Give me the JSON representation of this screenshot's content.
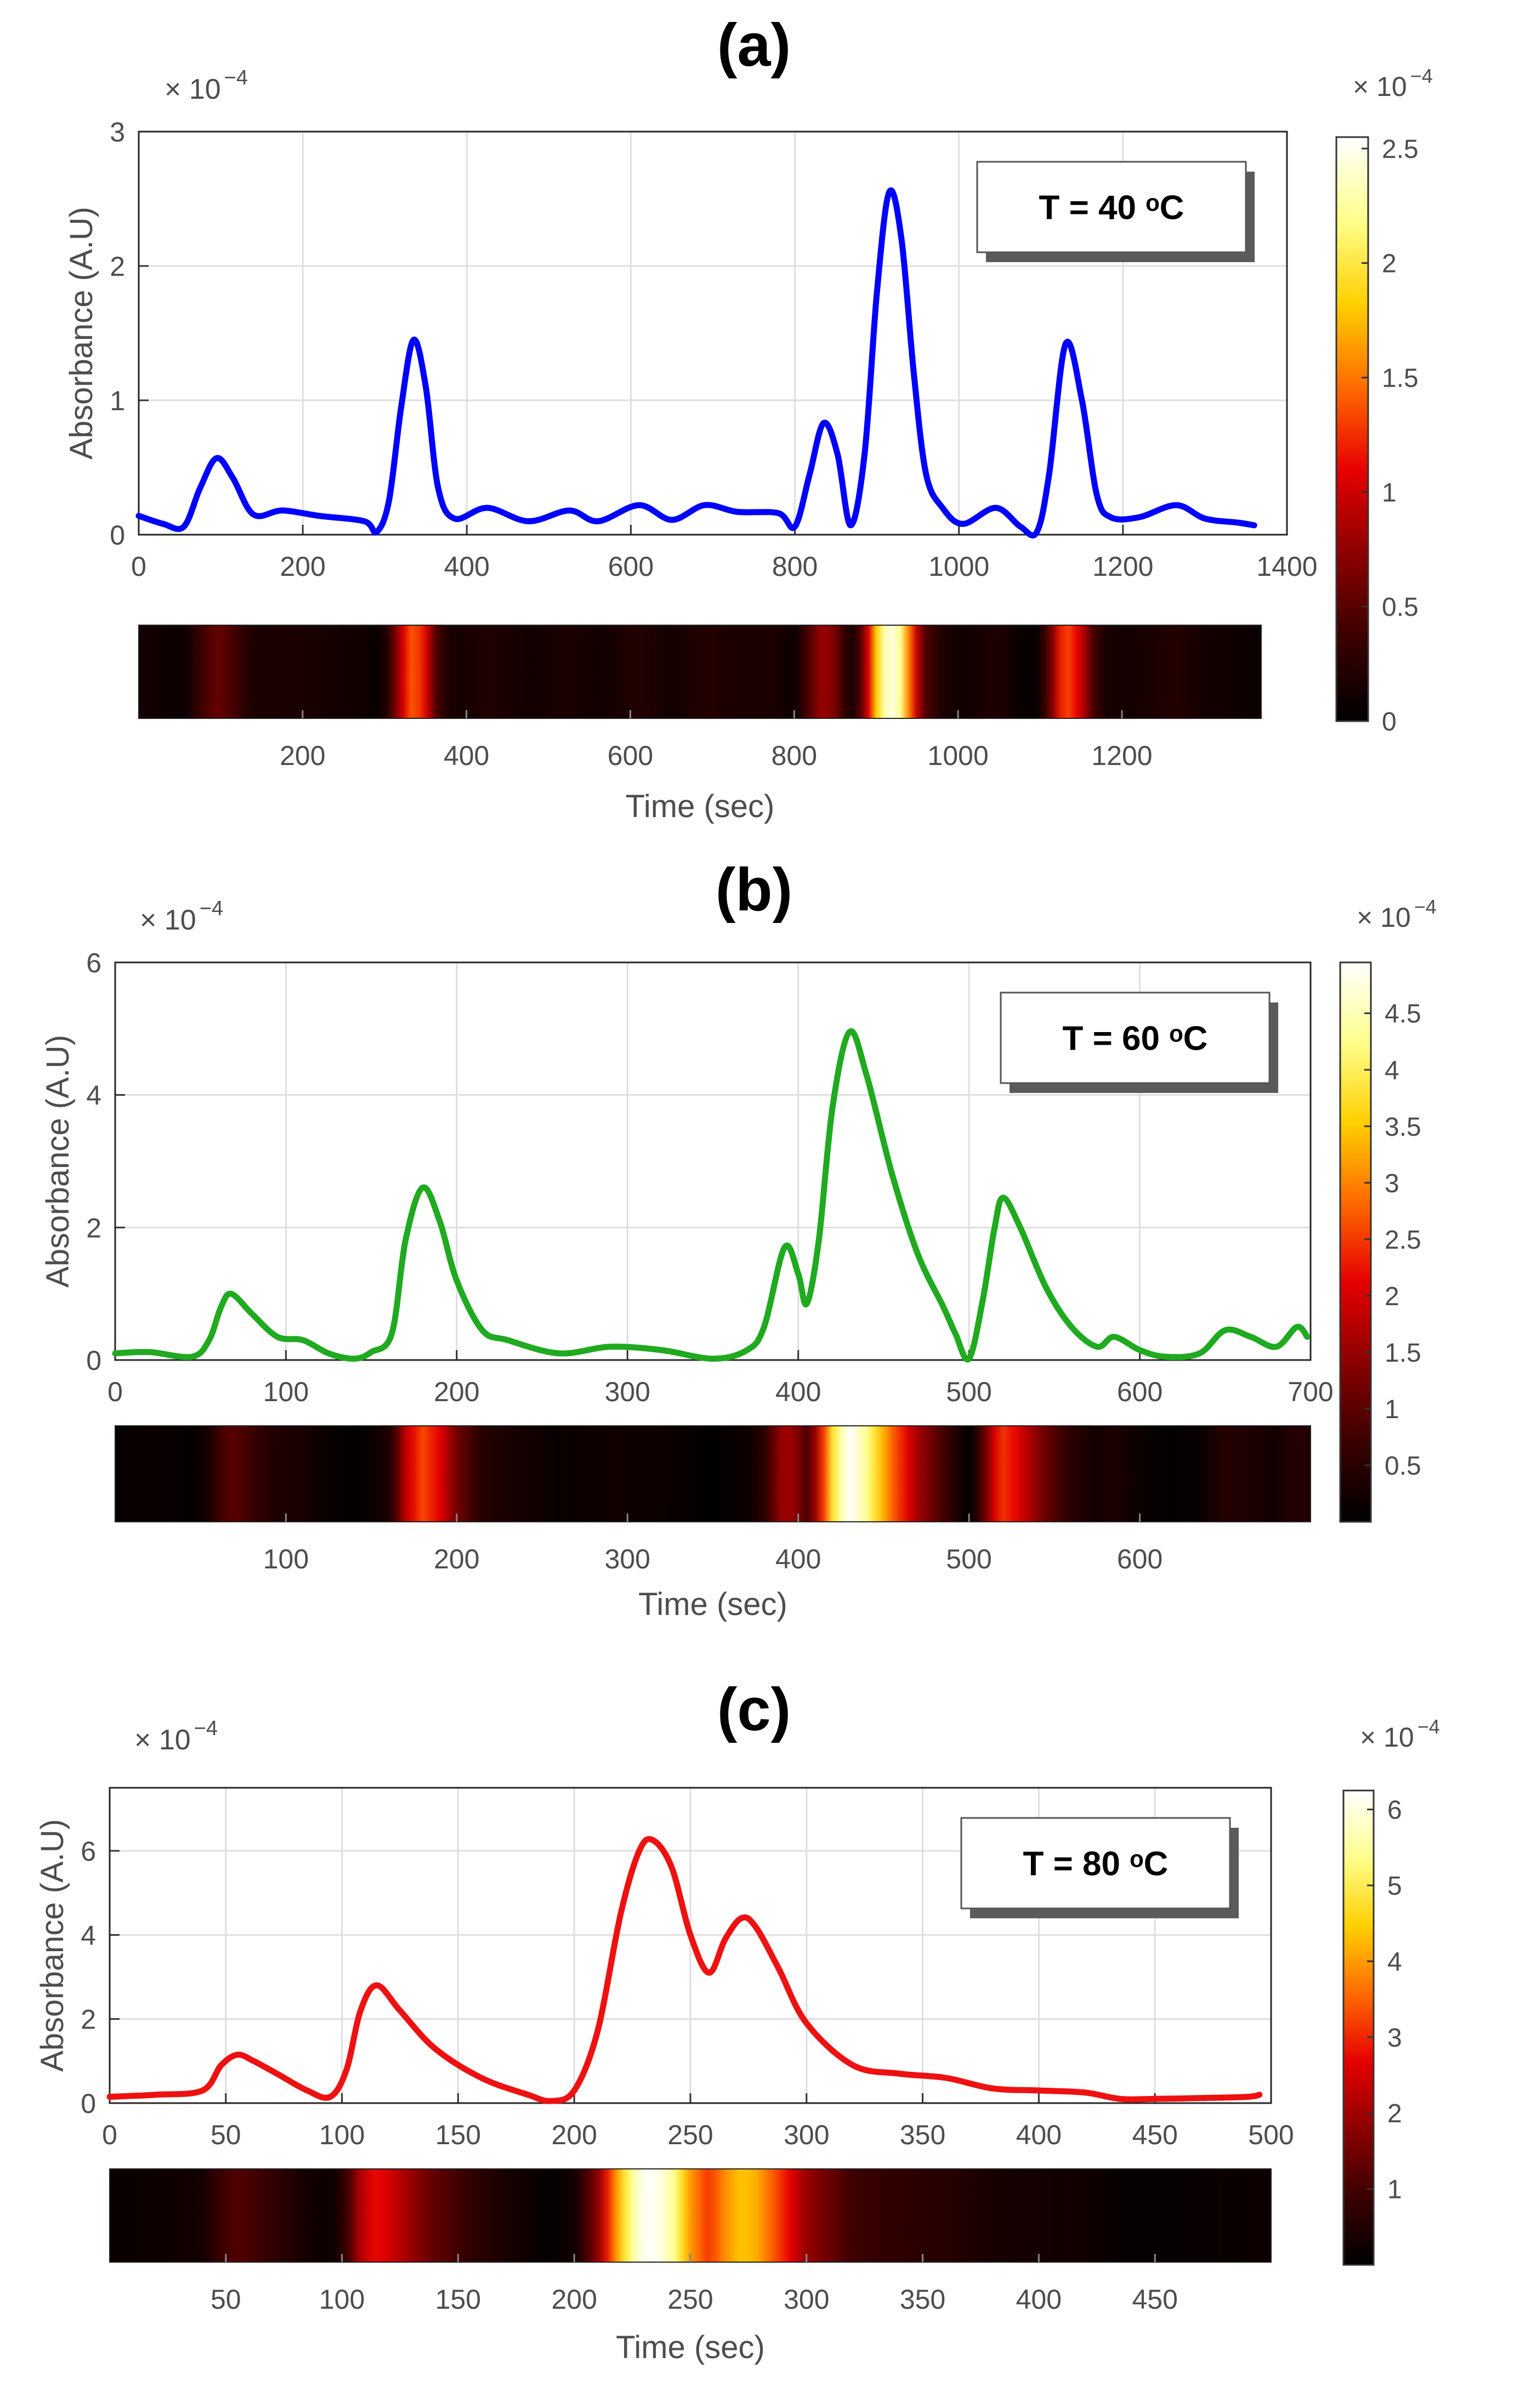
{
  "figure": {
    "background": "#ffffff",
    "heatmap_colors": [
      "#000000",
      "#3a0000",
      "#8b0000",
      "#e60000",
      "#ff6a00",
      "#ffd000",
      "#ffff8c",
      "#ffffff"
    ]
  },
  "chart_data": [
    {
      "panel_label": "(a)",
      "type": "line",
      "title": "",
      "xlabel": "",
      "ylabel": "Absorbance (A.U)",
      "y_multiplier": "× 10",
      "y_exponent": "−4",
      "xlim": [
        0,
        1400
      ],
      "ylim": [
        0,
        3
      ],
      "xticks": [
        0,
        200,
        400,
        600,
        800,
        1000,
        1200,
        1400
      ],
      "xtick_labels": [
        "0",
        "200",
        "400",
        "600",
        "800",
        "1000",
        "1200",
        "1400"
      ],
      "yticks": [
        0,
        1,
        2,
        3
      ],
      "ytick_labels": [
        "0",
        "1",
        "2",
        "3"
      ],
      "grid": true,
      "line_color": "#0000ff",
      "legend_text": "T = 40 ᵒC",
      "series": [
        {
          "name": "T = 40 ᵒC",
          "x": [
            0,
            30,
            55,
            75,
            95,
            115,
            140,
            175,
            220,
            275,
            290,
            305,
            320,
            335,
            350,
            365,
            385,
            425,
            475,
            525,
            560,
            610,
            650,
            690,
            730,
            780,
            800,
            818,
            835,
            852,
            868,
            885,
            900,
            915,
            930,
            945,
            960,
            980,
            1005,
            1045,
            1075,
            1095,
            1110,
            1130,
            1150,
            1168,
            1185,
            1220,
            1265,
            1300,
            1340,
            1360
          ],
          "y": [
            0.14,
            0.08,
            0.06,
            0.35,
            0.57,
            0.42,
            0.15,
            0.18,
            0.14,
            0.1,
            0.02,
            0.25,
            0.95,
            1.45,
            1.1,
            0.35,
            0.12,
            0.2,
            0.1,
            0.18,
            0.1,
            0.22,
            0.11,
            0.22,
            0.17,
            0.16,
            0.06,
            0.45,
            0.83,
            0.6,
            0.07,
            0.6,
            1.8,
            2.55,
            2.2,
            1.2,
            0.45,
            0.2,
            0.08,
            0.2,
            0.06,
            0.02,
            0.45,
            1.42,
            1.0,
            0.3,
            0.13,
            0.13,
            0.22,
            0.12,
            0.09,
            0.07
          ]
        }
      ],
      "heatmap": {
        "xticks": [
          200,
          400,
          600,
          800,
          1000,
          1200
        ],
        "xtick_labels": [
          "200",
          "400",
          "600",
          "800",
          "1000",
          "1200"
        ],
        "xlim": [
          0,
          1370
        ],
        "xlabel": "Time (sec)"
      },
      "colorbar": {
        "range": [
          0,
          2.55
        ],
        "ticks": [
          0,
          0.5,
          1,
          1.5,
          2,
          2.5
        ],
        "tick_labels": [
          "0",
          "0.5",
          "1",
          "1.5",
          "2",
          "2.5"
        ],
        "multiplier": "× 10",
        "exponent": "−4"
      }
    },
    {
      "panel_label": "(b)",
      "type": "line",
      "title": "",
      "xlabel": "",
      "ylabel": "Absorbance (A.U)",
      "y_multiplier": "× 10",
      "y_exponent": "−4",
      "xlim": [
        0,
        700
      ],
      "ylim": [
        0,
        6
      ],
      "xticks": [
        0,
        100,
        200,
        300,
        400,
        500,
        600,
        700
      ],
      "xtick_labels": [
        "0",
        "100",
        "200",
        "300",
        "400",
        "500",
        "600",
        "700"
      ],
      "yticks": [
        0,
        2,
        4,
        6
      ],
      "ytick_labels": [
        "0",
        "2",
        "4",
        "6"
      ],
      "grid": true,
      "line_color": "#1faa1f",
      "legend_text": "T = 60 ᵒC",
      "series": [
        {
          "name": "T = 60 ᵒC",
          "x": [
            0,
            20,
            45,
            55,
            62,
            68,
            80,
            95,
            110,
            125,
            140,
            150,
            162,
            170,
            180,
            190,
            200,
            215,
            230,
            260,
            290,
            320,
            350,
            370,
            380,
            392,
            400,
            405,
            412,
            420,
            430,
            440,
            455,
            470,
            485,
            492,
            500,
            508,
            515,
            520,
            530,
            545,
            560,
            575,
            585,
            600,
            615,
            635,
            650,
            665,
            680,
            692,
            698
          ],
          "y": [
            0.1,
            0.12,
            0.05,
            0.3,
            0.8,
            1.0,
            0.7,
            0.35,
            0.3,
            0.1,
            0.02,
            0.12,
            0.4,
            1.8,
            2.6,
            2.1,
            1.2,
            0.45,
            0.3,
            0.1,
            0.2,
            0.15,
            0.02,
            0.15,
            0.5,
            1.7,
            1.3,
            0.85,
            1.8,
            3.8,
            4.95,
            4.3,
            2.8,
            1.6,
            0.8,
            0.4,
            0.02,
            0.9,
            2.0,
            2.45,
            2.0,
            1.1,
            0.5,
            0.2,
            0.35,
            0.15,
            0.05,
            0.1,
            0.45,
            0.35,
            0.2,
            0.5,
            0.35
          ]
        }
      ],
      "heatmap": {
        "xticks": [
          100,
          200,
          300,
          400,
          500,
          600
        ],
        "xtick_labels": [
          "100",
          "200",
          "300",
          "400",
          "500",
          "600"
        ],
        "xlim": [
          0,
          700
        ],
        "xlabel": "Time (sec)"
      },
      "colorbar": {
        "range": [
          0,
          4.95
        ],
        "ticks": [
          0.5,
          1,
          1.5,
          2,
          2.5,
          3,
          3.5,
          4,
          4.5
        ],
        "tick_labels": [
          "0.5",
          "1",
          "1.5",
          "2",
          "2.5",
          "3",
          "3.5",
          "4",
          "4.5"
        ],
        "multiplier": "× 10",
        "exponent": "−4"
      }
    },
    {
      "panel_label": "(c)",
      "type": "line",
      "title": "",
      "xlabel": "",
      "ylabel": "Absorbance (A.U)",
      "y_multiplier": "× 10",
      "y_exponent": "−4",
      "xlim": [
        0,
        500
      ],
      "ylim": [
        0,
        7.5
      ],
      "xticks": [
        0,
        50,
        100,
        150,
        200,
        250,
        300,
        350,
        400,
        450,
        500
      ],
      "xtick_labels": [
        "0",
        "50",
        "100",
        "150",
        "200",
        "250",
        "300",
        "350",
        "400",
        "450",
        "500"
      ],
      "yticks": [
        0,
        2,
        4,
        6
      ],
      "ytick_labels": [
        "0",
        "2",
        "4",
        "6"
      ],
      "grid": true,
      "line_color": "#ee1111",
      "legend_text": "T = 80 ᵒC",
      "series": [
        {
          "name": "T = 80 ᵒC",
          "x": [
            0,
            20,
            40,
            48,
            55,
            62,
            72,
            85,
            95,
            102,
            108,
            115,
            125,
            140,
            160,
            180,
            190,
            200,
            210,
            220,
            228,
            234,
            242,
            250,
            258,
            265,
            272,
            278,
            288,
            300,
            320,
            340,
            360,
            380,
            400,
            420,
            435,
            450,
            470,
            490,
            495
          ],
          "y": [
            0.15,
            0.2,
            0.3,
            0.9,
            1.15,
            1.0,
            0.7,
            0.3,
            0.15,
            0.8,
            2.2,
            2.8,
            2.2,
            1.3,
            0.6,
            0.2,
            0.05,
            0.3,
            1.7,
            4.5,
            6.0,
            6.25,
            5.6,
            4.0,
            3.1,
            3.9,
            4.4,
            4.2,
            3.2,
            1.9,
            0.9,
            0.7,
            0.6,
            0.35,
            0.3,
            0.25,
            0.1,
            0.1,
            0.12,
            0.15,
            0.2
          ]
        }
      ],
      "heatmap": {
        "xticks": [
          50,
          100,
          150,
          200,
          250,
          300,
          350,
          400,
          450
        ],
        "xtick_labels": [
          "50",
          "100",
          "150",
          "200",
          "250",
          "300",
          "350",
          "400",
          "450"
        ],
        "xlim": [
          0,
          500
        ],
        "xlabel": "Time (sec)"
      },
      "colorbar": {
        "range": [
          0,
          6.25
        ],
        "ticks": [
          1,
          2,
          3,
          4,
          5,
          6
        ],
        "tick_labels": [
          "1",
          "2",
          "3",
          "4",
          "5",
          "6"
        ],
        "multiplier": "× 10",
        "exponent": "−4"
      }
    }
  ]
}
